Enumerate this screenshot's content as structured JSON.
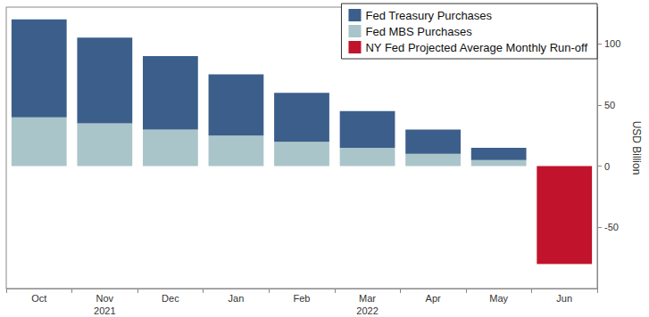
{
  "chart_data": {
    "type": "bar",
    "categories": [
      "Oct",
      "Nov",
      "Dec",
      "Jan",
      "Feb",
      "Mar",
      "Apr",
      "May",
      "Jun"
    ],
    "annotations": [
      {
        "text": "2021",
        "category": "Nov"
      },
      {
        "text": "2022",
        "category": "Mar"
      }
    ],
    "y_label": "USD Billion",
    "series": [
      {
        "name": "Fed Treasury Purchases",
        "color": "#3b5f8a",
        "values": [
          80,
          70,
          60,
          50,
          40,
          30,
          20,
          10,
          null
        ]
      },
      {
        "name": "Fed MBS Purchases",
        "color": "#aac5c9",
        "values": [
          40,
          35,
          30,
          25,
          20,
          15,
          10,
          5,
          null
        ]
      },
      {
        "name": "NY Fed Projected Average Monthly Run-off",
        "color": "#c1132c",
        "values": [
          null,
          null,
          null,
          null,
          null,
          null,
          null,
          null,
          -80
        ]
      }
    ],
    "ylim": [
      -100,
      130
    ],
    "yticks": [
      -50,
      0,
      50,
      100
    ],
    "stacked": true,
    "grid": false,
    "legend": "upper right"
  }
}
